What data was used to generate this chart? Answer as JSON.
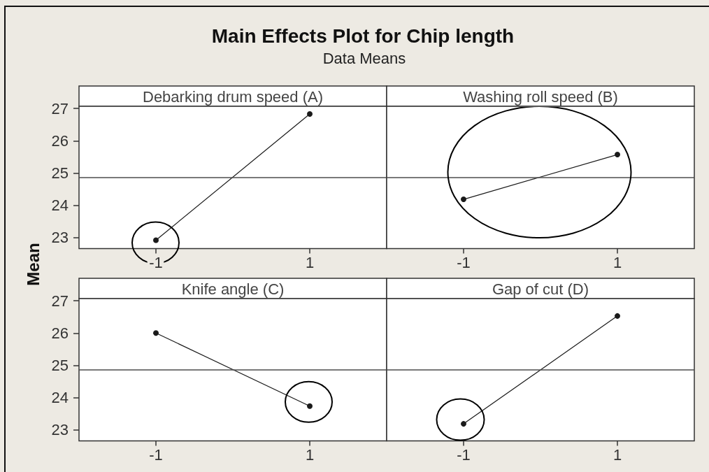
{
  "chart_data": [
    {
      "type": "other",
      "title": "Main Effects Plot for Chip length",
      "subtitle": "Data Means",
      "ylabel": "Mean"
    },
    {
      "type": "line",
      "title": "Debarking drum speed (A)",
      "categories": [
        "-1",
        "1"
      ],
      "values": [
        22.91,
        26.83
      ],
      "color": "#1a1a1a",
      "marker": "circle",
      "ylim": [
        22.65,
        27.07
      ],
      "yticks": [
        23,
        24,
        25,
        26,
        27
      ],
      "ref_lines": [
        {
          "axis": "y",
          "value": 24.87,
          "color": "#4d4d4d"
        }
      ]
    },
    {
      "type": "line",
      "title": "Washing roll speed (B)",
      "categories": [
        "-1",
        "1"
      ],
      "values": [
        24.18,
        25.57
      ],
      "color": "#1a1a1a",
      "marker": "circle",
      "ylim": [
        22.65,
        27.07
      ],
      "tick_labels": "x",
      "ref_lines": [
        {
          "axis": "y",
          "value": 24.87,
          "color": "#4d4d4d"
        }
      ]
    },
    {
      "type": "line",
      "title": "Knife angle (C)",
      "categories": [
        "-1",
        "1"
      ],
      "values": [
        26.0,
        23.73
      ],
      "color": "#1a1a1a",
      "marker": "circle",
      "ylim": [
        22.65,
        27.07
      ],
      "yticks": [
        23,
        24,
        25,
        26,
        27
      ],
      "ref_lines": [
        {
          "axis": "y",
          "value": 24.87,
          "color": "#4d4d4d"
        }
      ]
    },
    {
      "type": "line",
      "title": "Gap of cut (D)",
      "categories": [
        "-1",
        "1"
      ],
      "values": [
        23.18,
        26.53
      ],
      "color": "#1a1a1a",
      "marker": "circle",
      "ylim": [
        22.65,
        27.07
      ],
      "tick_labels": "x",
      "ref_lines": [
        {
          "axis": "y",
          "value": 24.87,
          "color": "#4d4d4d"
        }
      ]
    }
  ]
}
